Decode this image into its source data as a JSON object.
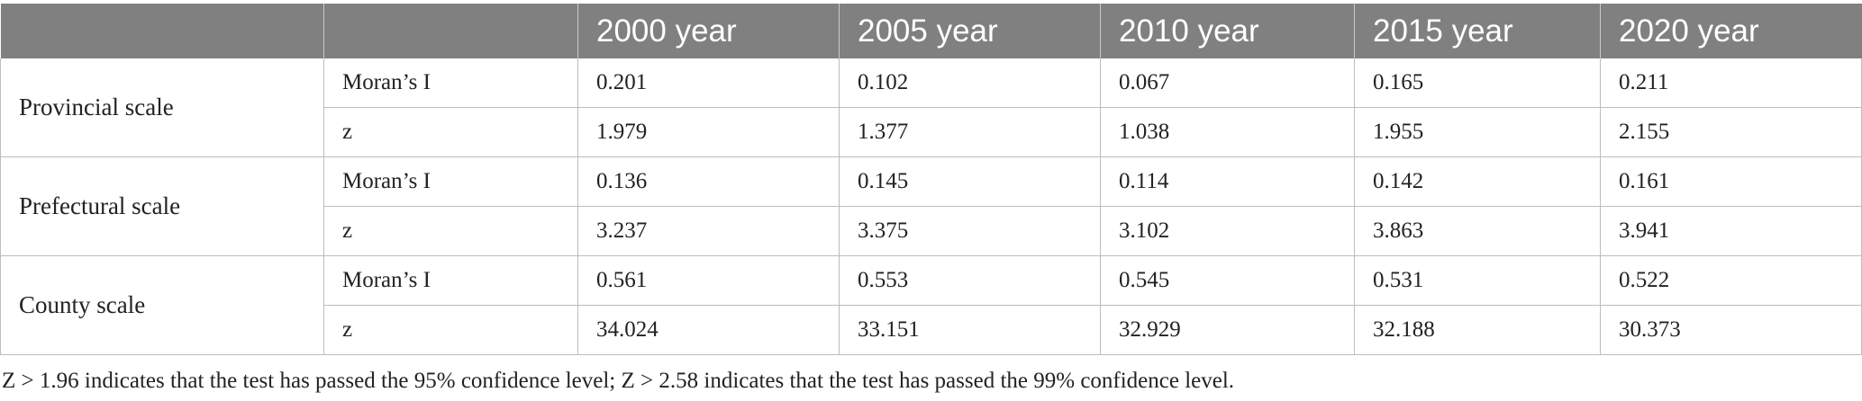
{
  "table": {
    "headers": [
      "",
      "",
      "2000 year",
      "2005 year",
      "2010 year",
      "2015 year",
      "2020 year"
    ],
    "groups": [
      {
        "label": "Provincial scale",
        "rows": [
          {
            "metric": "Moran’s I",
            "values": [
              "0.201",
              "0.102",
              "0.067",
              "0.165",
              "0.211"
            ]
          },
          {
            "metric": "z",
            "values": [
              "1.979",
              "1.377",
              "1.038",
              "1.955",
              "2.155"
            ]
          }
        ]
      },
      {
        "label": "Prefectural scale",
        "rows": [
          {
            "metric": "Moran’s I",
            "values": [
              "0.136",
              "0.145",
              "0.114",
              "0.142",
              "0.161"
            ]
          },
          {
            "metric": "z",
            "values": [
              "3.237",
              "3.375",
              "3.102",
              "3.863",
              "3.941"
            ]
          }
        ]
      },
      {
        "label": "County scale",
        "rows": [
          {
            "metric": "Moran’s I",
            "values": [
              "0.561",
              "0.553",
              "0.545",
              "0.531",
              "0.522"
            ]
          },
          {
            "metric": "z",
            "values": [
              "34.024",
              "33.151",
              "32.929",
              "32.188",
              "30.373"
            ]
          }
        ]
      }
    ]
  },
  "footnote": "Z > 1.96 indicates that the test has passed the 95% confidence level; Z > 2.58 indicates that the test has passed the 99% confidence level.",
  "colors": {
    "header_bg": "#808080",
    "header_text": "#ffffff",
    "grid": "#bdbdbd",
    "body_text": "#222222"
  }
}
